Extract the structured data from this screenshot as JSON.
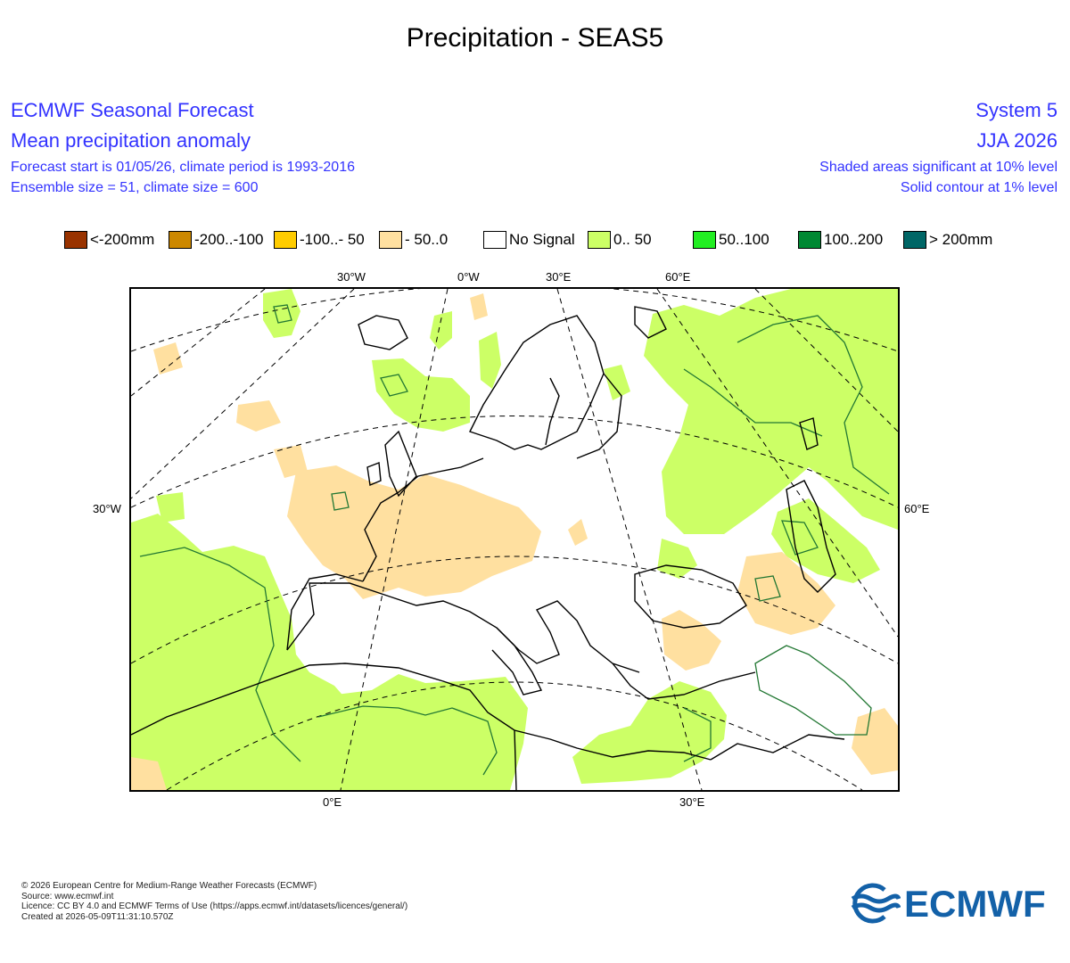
{
  "page_title": "Precipitation - SEAS5",
  "header": {
    "left": {
      "line1": "ECMWF Seasonal Forecast",
      "line2": "Mean precipitation anomaly",
      "line3": "Forecast start is 01/05/26, climate period is 1993-2016",
      "line4": "Ensemble size = 51, climate size = 600"
    },
    "right": {
      "line1": "System 5",
      "line2": "JJA 2026",
      "line3": "Shaded areas significant at 10% level",
      "line4": "Solid contour at 1% level"
    }
  },
  "legend": [
    {
      "label": "<-200mm",
      "color": "#993300"
    },
    {
      "label": "-200..-100",
      "color": "#cc8800"
    },
    {
      "label": "-100..- 50",
      "color": "#ffcc00"
    },
    {
      "label": "- 50..0",
      "color": "#ffe0a0"
    },
    {
      "label": "No Signal",
      "color": "#ffffff"
    },
    {
      "label": "0.. 50",
      "color": "#ccff66"
    },
    {
      "label": "50..100",
      "color": "#22ee22"
    },
    {
      "label": "100..200",
      "color": "#008833"
    },
    {
      "label": "> 200mm",
      "color": "#006666"
    }
  ],
  "map": {
    "colors": {
      "positive_light": "#ccff66",
      "negative_light": "#ffe0a0",
      "contour_1pct": "#227733",
      "coastline": "#000000",
      "graticule": "#000000"
    },
    "top_labels": [
      "30°W",
      "0°W",
      "30°E",
      "60°E"
    ],
    "bottom_labels": [
      "0°E",
      "30°E"
    ],
    "left_labels": [
      "30°W"
    ],
    "right_labels": [
      "60°E"
    ]
  },
  "footer": {
    "line1": "© 2026 European Centre for Medium-Range Weather Forecasts (ECMWF)",
    "line2": "Source: www.ecmwf.int",
    "line3": "Licence: CC BY 4.0 and ECMWF Terms of Use (https://apps.ecmwf.int/datasets/licences/general/)",
    "line4": "Created at 2026-05-09T11:31:10.570Z"
  },
  "logo": {
    "text": "ECMWF",
    "color": "#1361a8",
    "icon": "ecmwf-logo-icon"
  }
}
